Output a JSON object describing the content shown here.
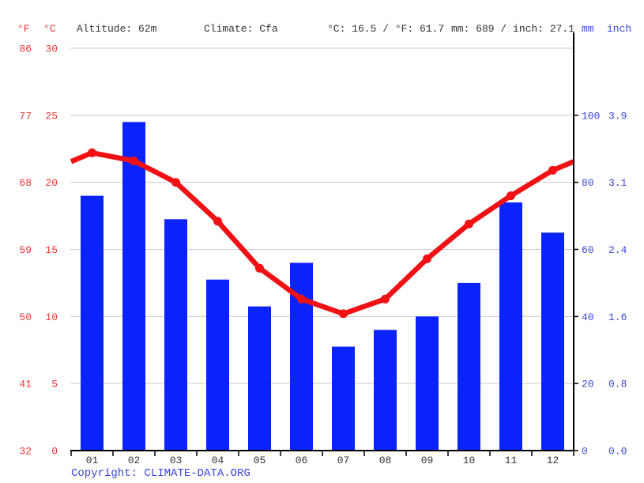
{
  "header": {
    "f_label": "°F",
    "c_label": "°C",
    "altitude": "Altitude: 62m",
    "climate": "Climate: Cfa",
    "temp_summary": "°C: 16.5 / °F: 61.7",
    "precip_summary": "mm: 689 / inch: 27.1",
    "mm_label": "mm",
    "inch_label": "inch"
  },
  "footer": {
    "copyright_prefix": "Copyright: ",
    "copyright_link": "CLIMATE-DATA.ORG"
  },
  "colors": {
    "precip_bar": "#0a23fa",
    "temp_line": "#f01114",
    "axis_red": "#ee3333",
    "axis_blue": "#3b45d8",
    "text_dark": "#333333",
    "grid": "#cccccc",
    "axis_black": "#000000",
    "background": "#ffffff"
  },
  "chart_data": {
    "type": "bar+line",
    "categories": [
      "01",
      "02",
      "03",
      "04",
      "05",
      "06",
      "07",
      "08",
      "09",
      "10",
      "11",
      "12"
    ],
    "series": [
      {
        "name": "Precipitation (mm)",
        "type": "bar",
        "values": [
          76,
          98,
          69,
          51,
          43,
          56,
          31,
          36,
          40,
          50,
          74,
          65
        ]
      },
      {
        "name": "Average temperature (°C)",
        "type": "line",
        "values": [
          22.2,
          21.6,
          20.0,
          17.1,
          13.6,
          11.3,
          10.2,
          11.3,
          14.3,
          16.9,
          19.0,
          20.9
        ]
      }
    ],
    "left_axis": {
      "f_ticks": [
        "86",
        "77",
        "68",
        "59",
        "50",
        "41",
        "32"
      ],
      "c_ticks": [
        "30",
        "25",
        "20",
        "15",
        "10",
        "5",
        "0"
      ],
      "c_range": [
        0,
        30
      ]
    },
    "right_axis": {
      "mm_ticks": [
        "100",
        "80",
        "60",
        "40",
        "20",
        "0"
      ],
      "inch_ticks": [
        "3.9",
        "3.1",
        "2.4",
        "1.6",
        "0.8",
        "0.0"
      ],
      "mm_per_gridline": 20
    },
    "grid": true,
    "legend": "none"
  }
}
